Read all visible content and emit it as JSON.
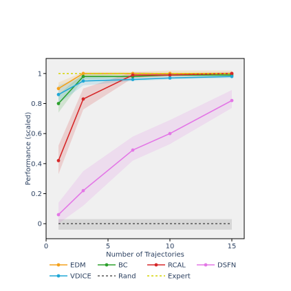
{
  "chart_data": {
    "type": "line",
    "title": "",
    "xlabel": "Number of Trajectories",
    "ylabel": "Performance (scaled)",
    "xlim": [
      0,
      16
    ],
    "ylim": [
      -0.1,
      1.1
    ],
    "x_ticks": [
      0,
      5,
      10,
      15
    ],
    "x_tick_labels": [
      "0",
      "5",
      "10",
      "15"
    ],
    "y_ticks": [
      0,
      0.2,
      0.4,
      0.6,
      0.8,
      1
    ],
    "y_tick_labels": [
      "0",
      "0.2",
      "0.4",
      "0.6",
      "0.8",
      "1"
    ],
    "grid": false,
    "legend_position": "bottom",
    "x": [
      1,
      3,
      7,
      10,
      15
    ],
    "series": [
      {
        "name": "EDM",
        "color": "#f4a11b",
        "style": "solid",
        "markers": true,
        "values": [
          0.9,
          1.0,
          1.0,
          1.0,
          1.0
        ],
        "lower": [
          0.86,
          0.98,
          0.99,
          0.99,
          0.99
        ],
        "upper": [
          0.94,
          1.01,
          1.01,
          1.02,
          1.02
        ]
      },
      {
        "name": "BC",
        "color": "#2ca02c",
        "style": "solid",
        "markers": true,
        "values": [
          0.8,
          0.98,
          0.98,
          0.99,
          0.99
        ],
        "lower": [
          0.74,
          0.96,
          0.97,
          0.98,
          0.98
        ],
        "upper": [
          0.86,
          1.0,
          0.99,
          1.0,
          1.0
        ]
      },
      {
        "name": "RCAL",
        "color": "#d62728",
        "style": "solid",
        "markers": true,
        "values": [
          0.42,
          0.83,
          0.99,
          0.99,
          1.0
        ],
        "lower": [
          0.33,
          0.76,
          0.97,
          0.98,
          0.99
        ],
        "upper": [
          0.52,
          0.9,
          1.01,
          1.0,
          1.01
        ]
      },
      {
        "name": "DSFN",
        "color": "#e377e6",
        "style": "solid",
        "markers": true,
        "values": [
          0.06,
          0.22,
          0.49,
          0.6,
          0.82
        ],
        "lower": [
          0.0,
          0.12,
          0.42,
          0.53,
          0.77
        ],
        "upper": [
          0.14,
          0.35,
          0.58,
          0.69,
          0.89
        ]
      },
      {
        "name": "VDICE",
        "color": "#1fa7d6",
        "style": "solid",
        "markers": true,
        "values": [
          0.86,
          0.95,
          0.96,
          0.97,
          0.98
        ],
        "lower": [
          0.8,
          0.92,
          0.95,
          0.96,
          0.97
        ],
        "upper": [
          0.92,
          0.98,
          0.97,
          0.98,
          0.99
        ]
      },
      {
        "name": "Rand",
        "color": "#555555",
        "style": "dotted",
        "markers": false,
        "values": [
          0.0,
          0.0,
          0.0,
          0.0,
          0.0
        ],
        "lower": [
          -0.04,
          -0.04,
          -0.04,
          -0.04,
          -0.04
        ],
        "upper": [
          0.03,
          0.03,
          0.03,
          0.03,
          0.03
        ]
      },
      {
        "name": "Expert",
        "color": "#d4d400",
        "style": "dotted",
        "markers": false,
        "values": [
          1.0,
          1.0,
          1.0,
          1.0,
          1.0
        ]
      }
    ],
    "legend_rows": [
      [
        "EDM",
        "BC",
        "RCAL",
        "DSFN"
      ],
      [
        "VDICE",
        "Rand",
        "Expert"
      ]
    ]
  }
}
